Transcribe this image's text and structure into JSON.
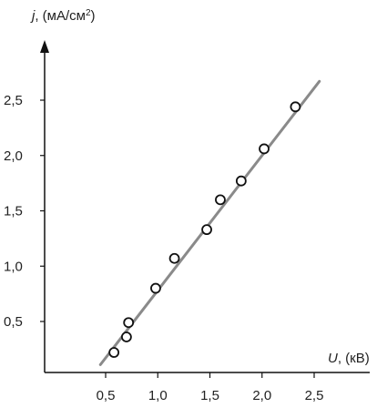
{
  "chart_data": {
    "type": "scatter",
    "title": "",
    "xlabel": {
      "symbol": "U",
      "unit": ", (кВ)"
    },
    "ylabel": {
      "symbol": "j",
      "unit": ", (мА/см",
      "unit_sup": "2",
      "unit_close": ")"
    },
    "xlim": [
      0.3,
      2.75
    ],
    "ylim": [
      0.0,
      3.0
    ],
    "x_ticks": [
      {
        "value": 0.5,
        "label": "0,5"
      },
      {
        "value": 1.0,
        "label": "1,0"
      },
      {
        "value": 1.5,
        "label": "1,5"
      },
      {
        "value": 2.0,
        "label": "2,0"
      },
      {
        "value": 2.5,
        "label": "2,5"
      }
    ],
    "y_ticks": [
      {
        "value": 0.5,
        "label": "0,5"
      },
      {
        "value": 1.0,
        "label": "1,0"
      },
      {
        "value": 1.5,
        "label": "1,5"
      },
      {
        "value": 2.0,
        "label": "2,0"
      },
      {
        "value": 2.5,
        "label": "2,5"
      }
    ],
    "points": [
      {
        "x": 0.58,
        "y": 0.22
      },
      {
        "x": 0.7,
        "y": 0.36
      },
      {
        "x": 0.72,
        "y": 0.49
      },
      {
        "x": 0.98,
        "y": 0.8
      },
      {
        "x": 1.16,
        "y": 1.07
      },
      {
        "x": 1.47,
        "y": 1.33
      },
      {
        "x": 1.6,
        "y": 1.6
      },
      {
        "x": 1.8,
        "y": 1.77
      },
      {
        "x": 2.02,
        "y": 2.06
      },
      {
        "x": 2.32,
        "y": 2.44
      }
    ],
    "fit_line": {
      "x": [
        0.45,
        2.55
      ],
      "y": [
        0.11,
        2.67
      ]
    },
    "grid": false,
    "legend": "none"
  }
}
